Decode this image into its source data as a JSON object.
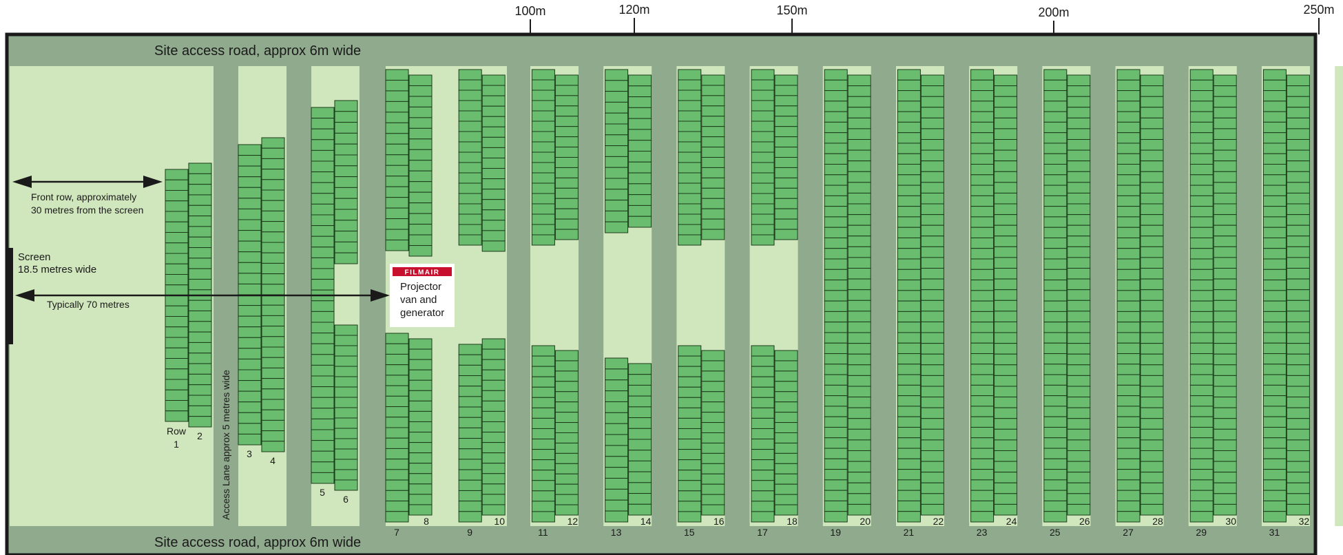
{
  "scale": [
    {
      "label": "100m"
    },
    {
      "label": "120m"
    },
    {
      "label": "150m"
    },
    {
      "label": "200m"
    },
    {
      "label": "250m"
    }
  ],
  "road_top": "Site access road, approx 6m wide",
  "road_bottom": "Site access road, approx 6m wide",
  "access_lane": "Access Lane approx 5 metres wide",
  "screen": {
    "line1": "Screen",
    "line2": "18.5 metres wide"
  },
  "front_row": {
    "line1": "Front row, approximately",
    "line2": "30 metres from the screen"
  },
  "typical_distance": "Typically 70 metres",
  "projector": {
    "logo": "FILMAIR",
    "line1": "Projector",
    "line2": "van and",
    "line3": "generator"
  },
  "row_word": "Row",
  "rows": [
    "1",
    "2",
    "3",
    "4",
    "5",
    "6",
    "7",
    "8",
    "9",
    "10",
    "11",
    "12",
    "13",
    "14",
    "15",
    "16",
    "17",
    "18",
    "19",
    "20",
    "21",
    "22",
    "23",
    "24",
    "25",
    "26",
    "27",
    "28",
    "29",
    "30",
    "31",
    "32"
  ],
  "colors": {
    "road": "#8faa8c",
    "field": "#d0e6bc",
    "car": "#6abd6f",
    "car_stroke": "#1a3a1a",
    "border": "#1a1a1a",
    "logo": "#c8102e"
  }
}
